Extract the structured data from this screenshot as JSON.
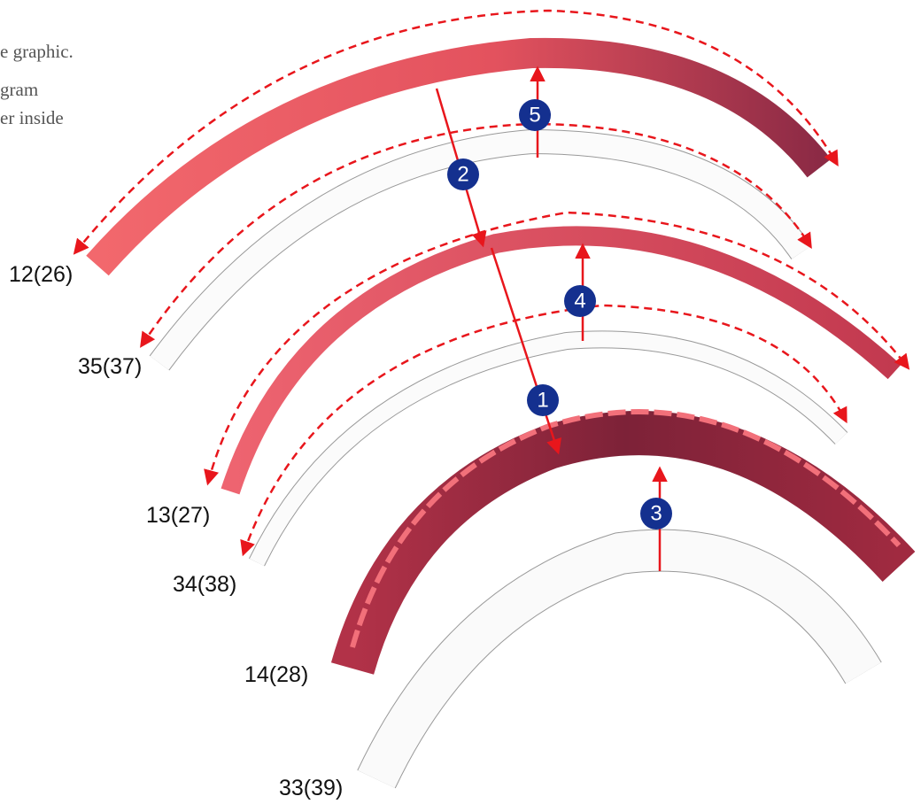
{
  "intro_text": [
    "e graphic.",
    "gram",
    "er inside"
  ],
  "parts": [
    {
      "label": "12(26)"
    },
    {
      "label": "35(37)"
    },
    {
      "label": "13(27)"
    },
    {
      "label": "34(38)"
    },
    {
      "label": "14(28)"
    },
    {
      "label": "33(39)"
    }
  ],
  "steps": [
    "1",
    "2",
    "3",
    "4",
    "5"
  ]
}
